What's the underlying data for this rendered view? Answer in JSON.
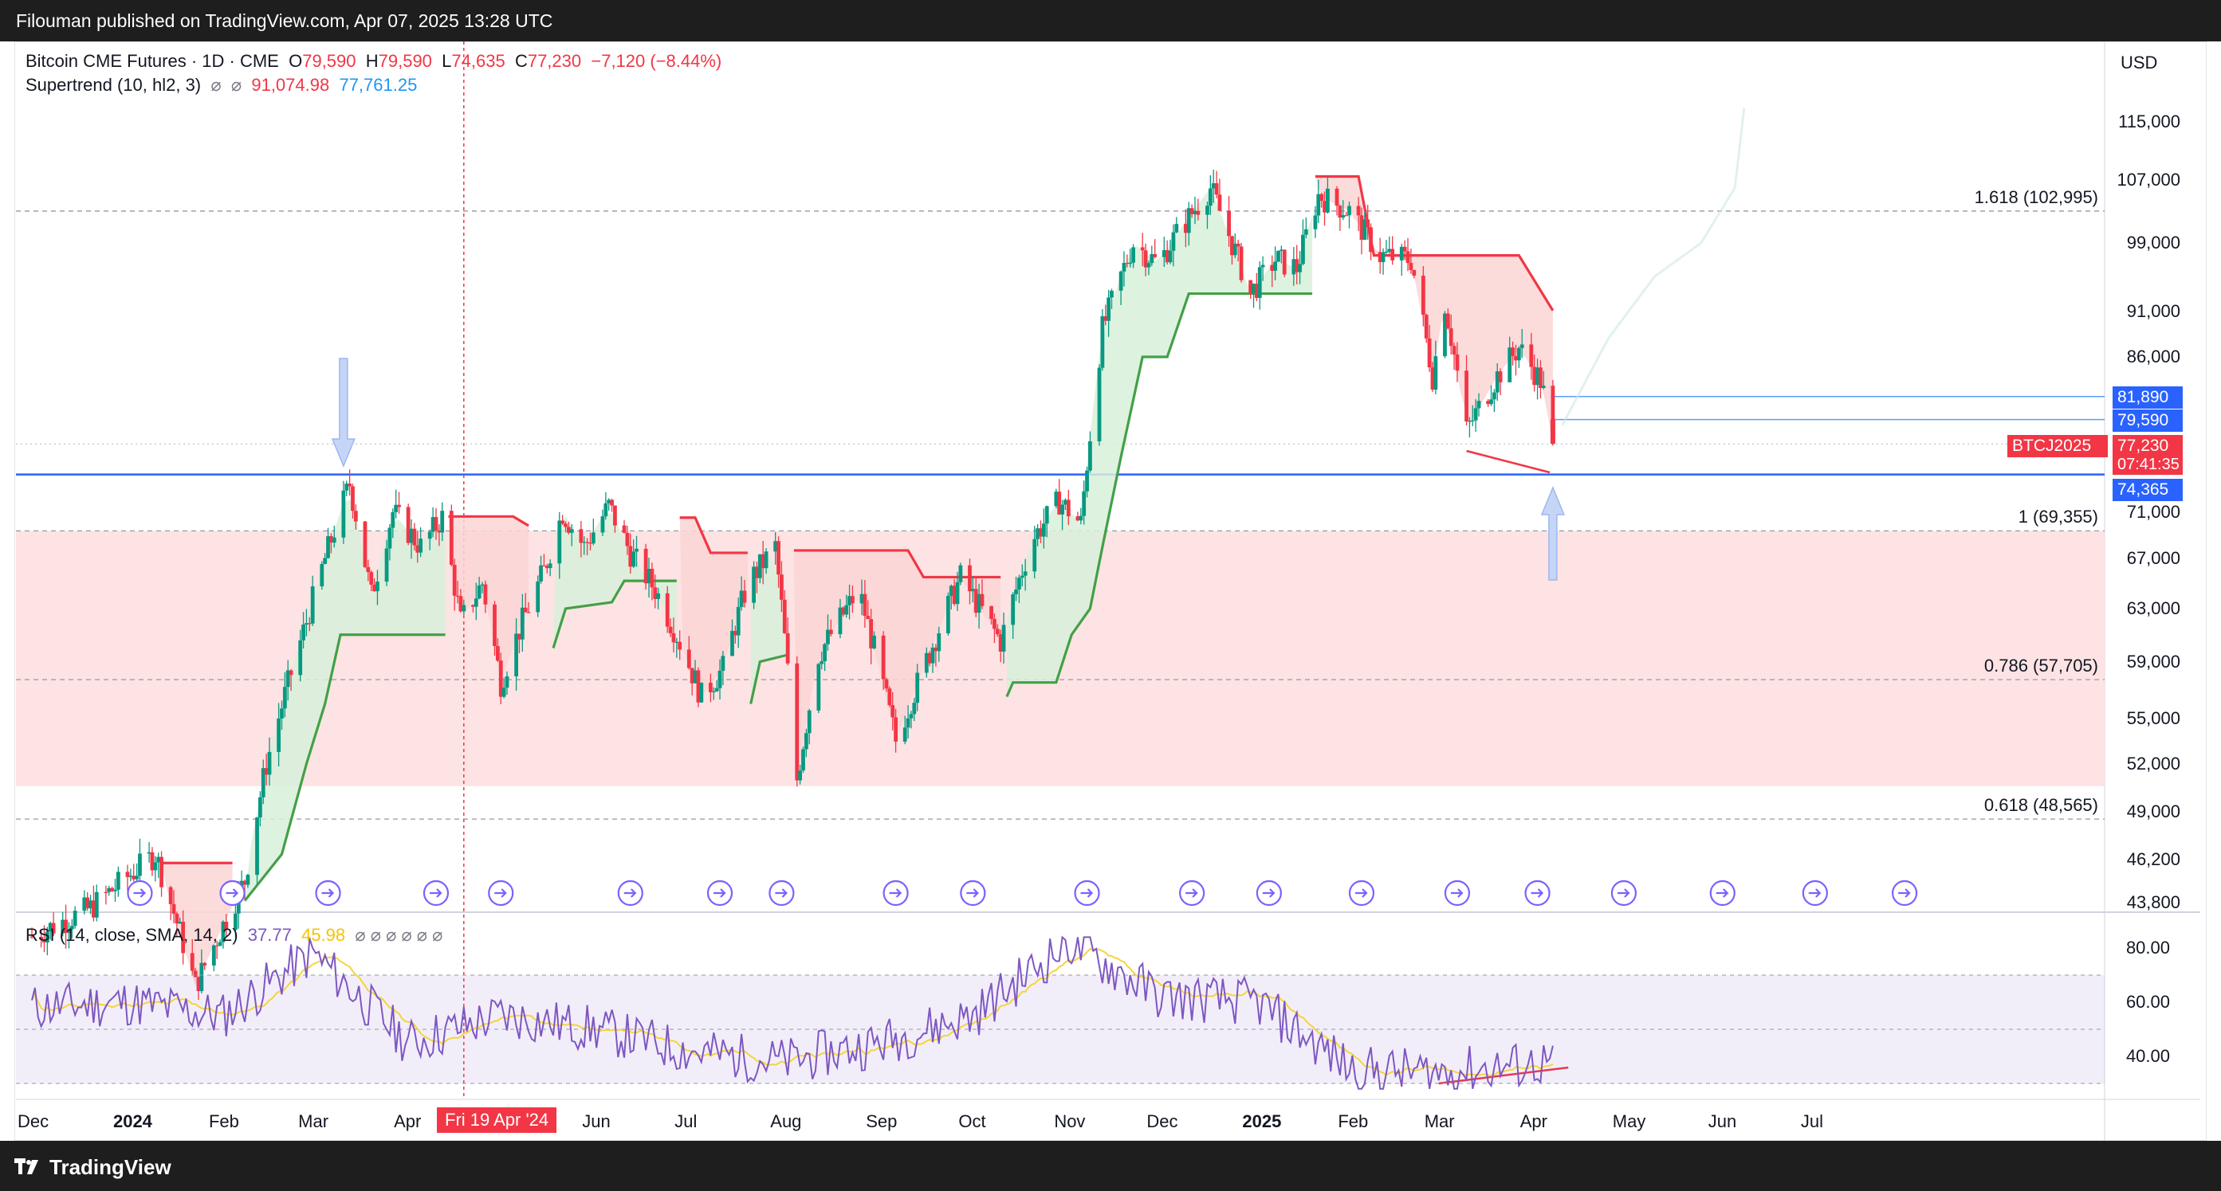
{
  "header": {
    "published": "Filouman published on TradingView.com, Apr 07, 2025 13:28 UTC"
  },
  "footer": {
    "brand": "TradingView"
  },
  "symbol": {
    "title": "Bitcoin CME Futures · 1D · CME",
    "o_label": "O",
    "o": "79,590",
    "h_label": "H",
    "h": "79,590",
    "l_label": "L",
    "l": "74,635",
    "c_label": "C",
    "c": "77,230",
    "change": "−7,120 (−8.44%)"
  },
  "supertrend": {
    "label": "Supertrend (10, hl2, 3)",
    "sym1": "⌀",
    "sym2": "⌀",
    "down": "91,074.98",
    "up": "77,761.25"
  },
  "rsi": {
    "label": "RSI (14, close, SMA, 14, 2)",
    "value": "37.77",
    "ma": "45.98",
    "extras": "⌀ ⌀ ⌀ ⌀ ⌀ ⌀"
  },
  "currency": "USD",
  "badges": {
    "b1": "81,890",
    "b2": "79,590",
    "ticker": "BTCJ2025",
    "last": "77,230",
    "countdown": "07:41:35",
    "level": "74,365"
  },
  "crosshair_date": "Fri 19 Apr '24",
  "fib": [
    {
      "label": "1.618 (102,995)",
      "price": 102995
    },
    {
      "label": "1 (69,355)",
      "price": 69355
    },
    {
      "label": "0.786 (57,705)",
      "price": 57705
    },
    {
      "label": "0.618 (48,565)",
      "price": 48565
    }
  ],
  "price_axis": [
    "115,000",
    "107,000",
    "99,000",
    "91,000",
    "86,000",
    "71,000",
    "67,000",
    "63,000",
    "59,000",
    "55,000",
    "52,000",
    "49,000",
    "46,200",
    "43,800"
  ],
  "rsi_axis": [
    "80.00",
    "60.00",
    "40.00"
  ],
  "time_axis": [
    "Dec",
    "2024",
    "Feb",
    "Mar",
    "Apr",
    "Jun",
    "Jul",
    "Aug",
    "Sep",
    "Oct",
    "Nov",
    "Dec",
    "2025",
    "Feb",
    "Mar",
    "Apr",
    "May",
    "Jun",
    "Jul"
  ],
  "colors": {
    "up": "#089981",
    "down": "#f23645",
    "blue": "#2962ff",
    "st_up": "#43a047",
    "st_down": "#f23645",
    "zone": "#fde0e0",
    "rsi_line": "#7e57c2",
    "rsi_ma": "#f5d43b"
  },
  "chart_data": {
    "type": "candlestick",
    "title": "Bitcoin CME Futures · 1D · CME",
    "ylabel": "USD",
    "x": [
      "Dec 2023",
      "Jan 2024",
      "Feb",
      "Mar",
      "Apr",
      "May",
      "Jun",
      "Jul",
      "Aug",
      "Sep",
      "Oct",
      "Nov",
      "Dec",
      "Jan 2025",
      "Feb",
      "Mar",
      "Apr"
    ],
    "close_approx": [
      42500,
      43000,
      51000,
      70500,
      64000,
      67500,
      62000,
      58000,
      58500,
      63500,
      72000,
      96000,
      95000,
      102000,
      85000,
      83000,
      77230
    ],
    "supertrend_up": [
      null,
      null,
      44000,
      61000,
      61000,
      60000,
      58500,
      56500,
      54500,
      56000,
      62000,
      88000,
      93000,
      null,
      null,
      null,
      77761.25
    ],
    "supertrend_down": [
      null,
      45500,
      null,
      null,
      70500,
      70800,
      70000,
      66500,
      67000,
      null,
      null,
      null,
      null,
      107000,
      97000,
      96000,
      91074.98
    ],
    "levels": [
      74365,
      81890,
      79590
    ],
    "fib_levels": [
      {
        "ratio": 1.618,
        "price": 102995
      },
      {
        "ratio": 1,
        "price": 69355
      },
      {
        "ratio": 0.786,
        "price": 57705
      },
      {
        "ratio": 0.618,
        "price": 48565
      }
    ],
    "rsi_approx": [
      58,
      60,
      55,
      78,
      45,
      55,
      50,
      42,
      38,
      45,
      55,
      82,
      62,
      60,
      35,
      34,
      37.77
    ],
    "rsi_bands": [
      70,
      50,
      30
    ]
  }
}
